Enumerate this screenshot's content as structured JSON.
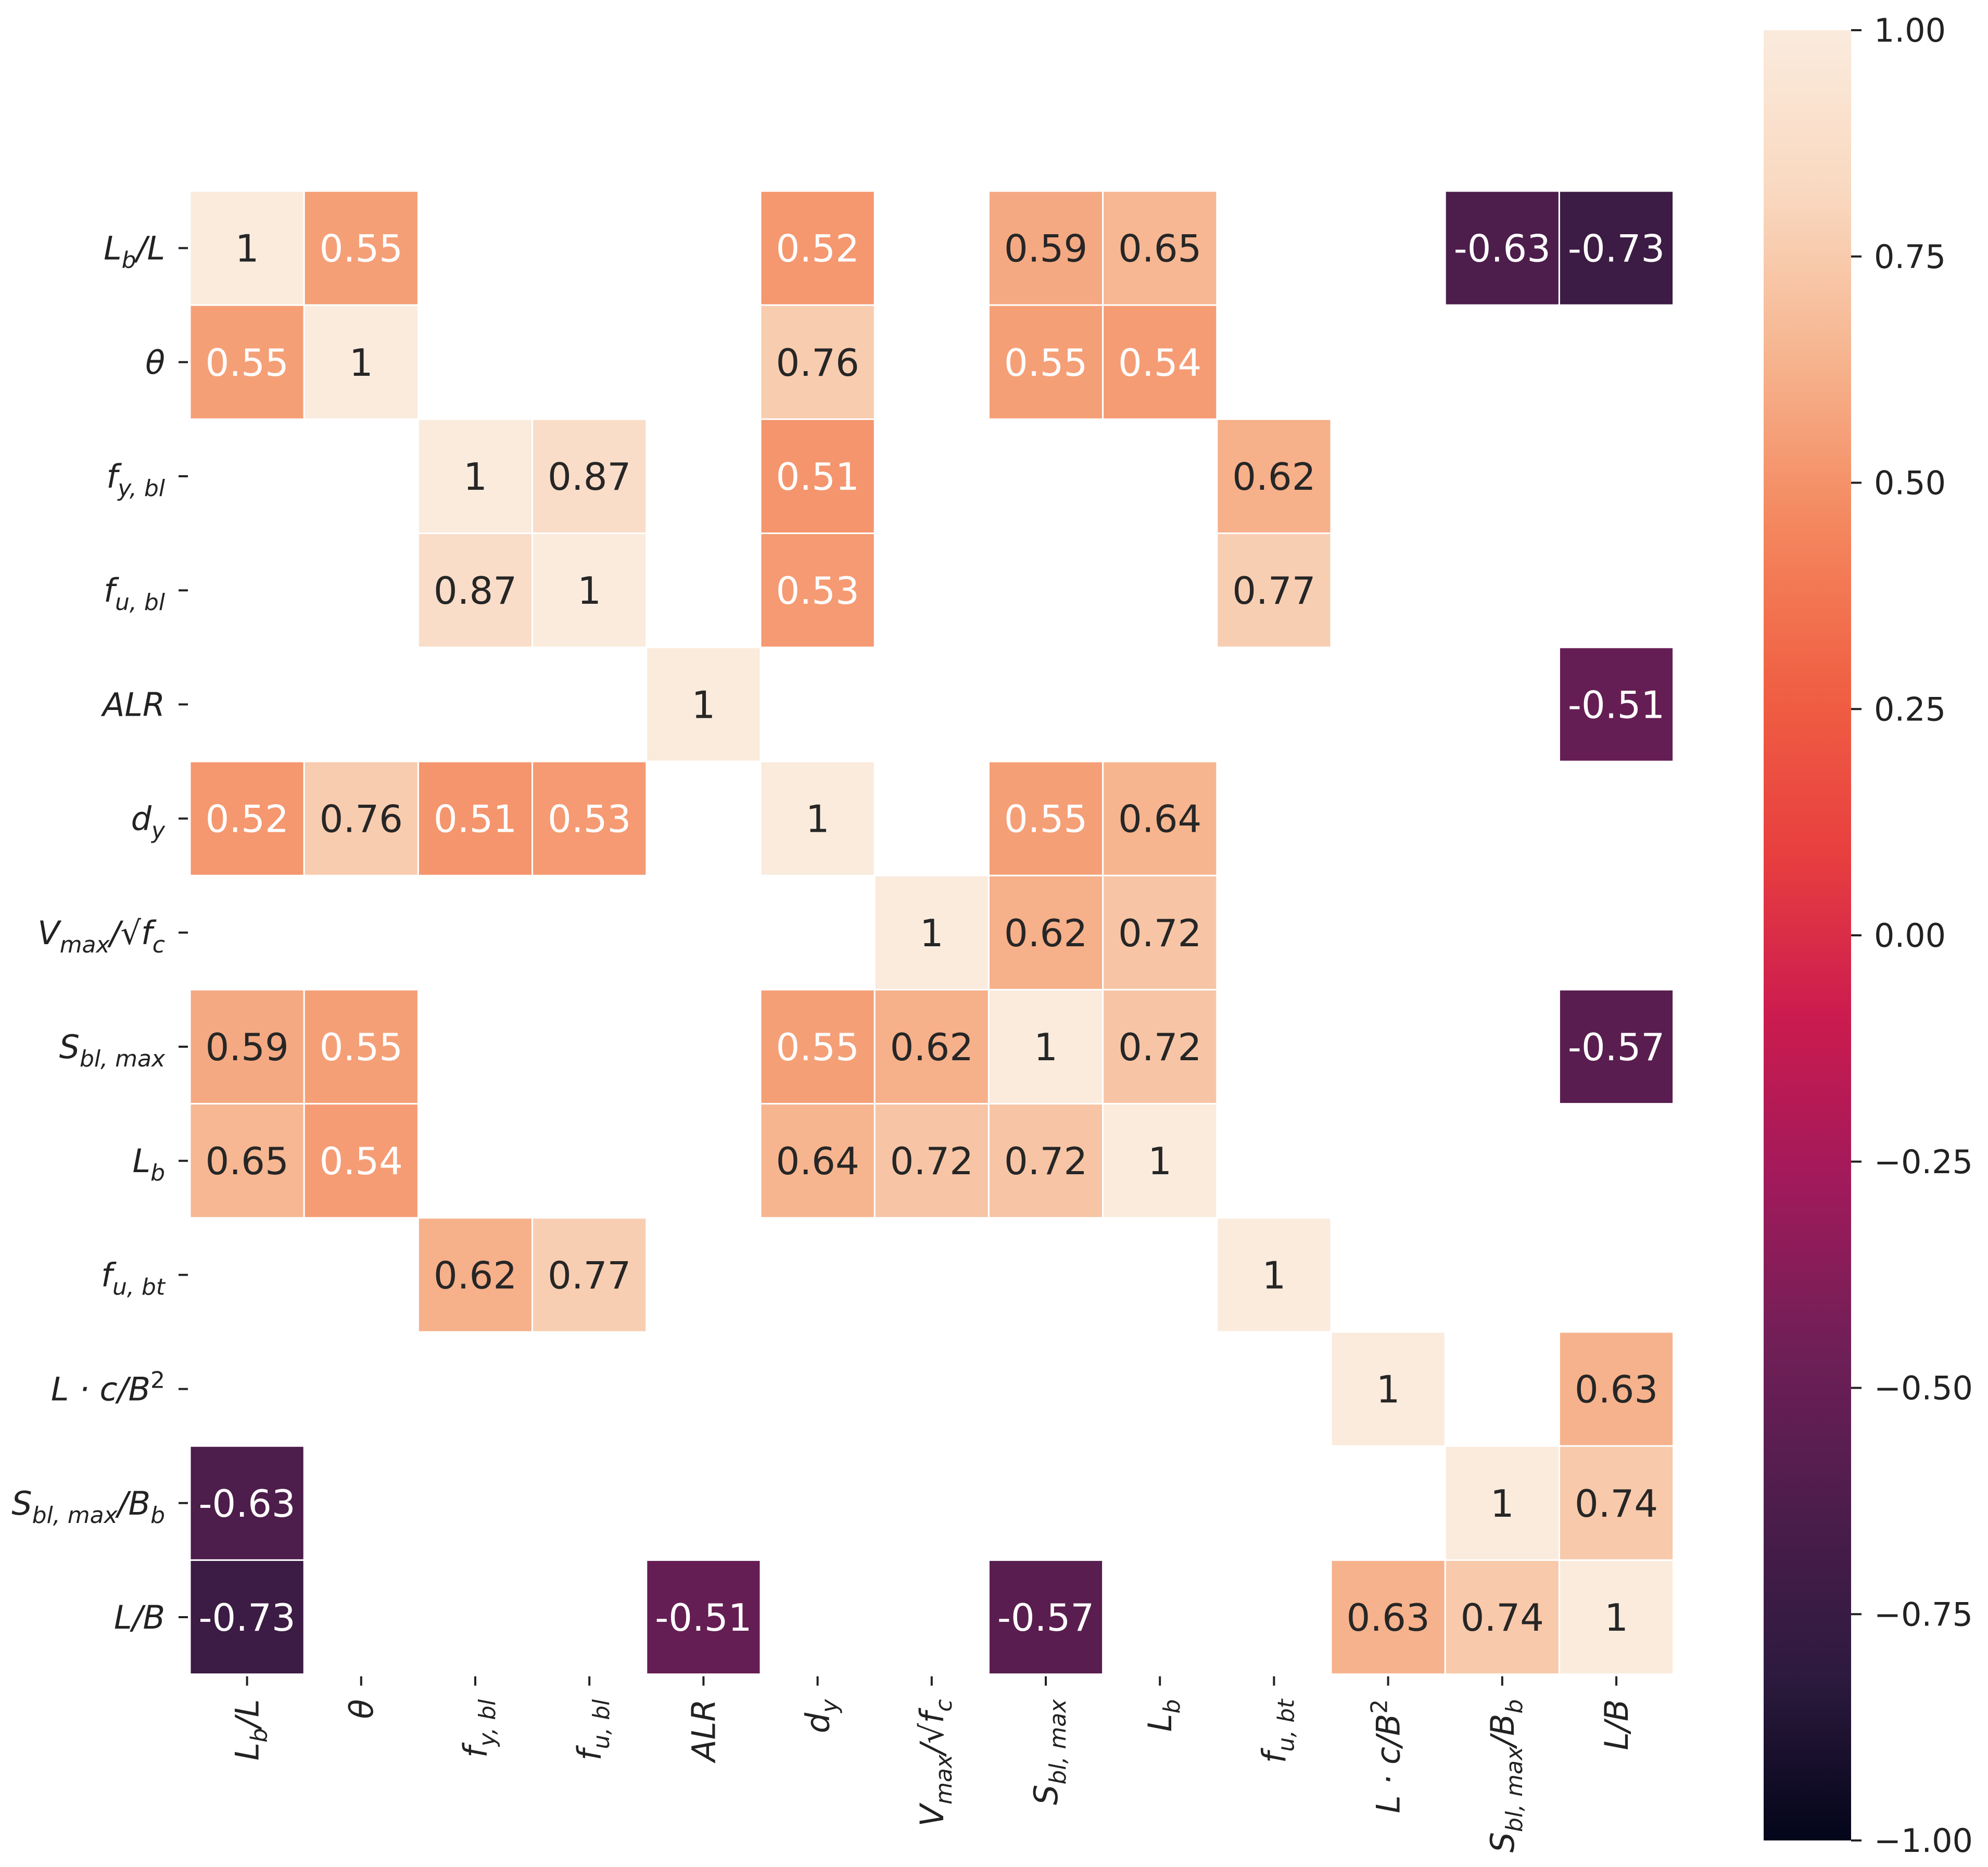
{
  "chart_data": {
    "type": "heatmap",
    "title": "",
    "xlabel": "",
    "ylabel": "",
    "categories": [
      "L_b/L",
      "θ",
      "f_y,bl",
      "f_u,bl",
      "ALR",
      "d_y",
      "V_max/√f_c",
      "S_bl,max",
      "L_b",
      "f_u,bt",
      "L·c/B²",
      "S_bl,max/B_b",
      "L/B"
    ],
    "category_labels": [
      {
        "base": "L",
        "sub": "b",
        "tail": "/L"
      },
      {
        "base": "θ",
        "sub": "",
        "tail": ""
      },
      {
        "base": "f",
        "sub": "y, bl",
        "tail": ""
      },
      {
        "base": "f",
        "sub": "u, bl",
        "tail": ""
      },
      {
        "base": "ALR",
        "sub": "",
        "tail": ""
      },
      {
        "base": "d",
        "sub": "y",
        "tail": ""
      },
      {
        "base": "V",
        "sub": "max",
        "tail": "/√f",
        "sub2": "c"
      },
      {
        "base": "S",
        "sub": "bl, max",
        "tail": ""
      },
      {
        "base": "L",
        "sub": "b",
        "tail": ""
      },
      {
        "base": "f",
        "sub": "u, bt",
        "tail": ""
      },
      {
        "base": "L · c/B",
        "sup": "2",
        "sub": "",
        "tail": ""
      },
      {
        "base": "S",
        "sub": "bl, max",
        "tail": "/B",
        "sub2": "b"
      },
      {
        "base": "L/B",
        "sub": "",
        "tail": ""
      }
    ],
    "values": [
      [
        1,
        0.55,
        null,
        null,
        null,
        0.52,
        null,
        0.59,
        0.65,
        null,
        null,
        -0.63,
        -0.73
      ],
      [
        0.55,
        1,
        null,
        null,
        null,
        0.76,
        null,
        0.55,
        0.54,
        null,
        null,
        null,
        null
      ],
      [
        null,
        null,
        1,
        0.87,
        null,
        0.51,
        null,
        null,
        null,
        0.62,
        null,
        null,
        null
      ],
      [
        null,
        null,
        0.87,
        1,
        null,
        0.53,
        null,
        null,
        null,
        0.77,
        null,
        null,
        null
      ],
      [
        null,
        null,
        null,
        null,
        1,
        null,
        null,
        null,
        null,
        null,
        null,
        null,
        -0.51
      ],
      [
        0.52,
        0.76,
        0.51,
        0.53,
        null,
        1,
        null,
        0.55,
        0.64,
        null,
        null,
        null,
        null
      ],
      [
        null,
        null,
        null,
        null,
        null,
        null,
        1,
        0.62,
        0.72,
        null,
        null,
        null,
        null
      ],
      [
        0.59,
        0.55,
        null,
        null,
        null,
        0.55,
        0.62,
        1,
        0.72,
        null,
        null,
        null,
        -0.57
      ],
      [
        0.65,
        0.54,
        null,
        null,
        null,
        0.64,
        0.72,
        0.72,
        1,
        null,
        null,
        null,
        null
      ],
      [
        null,
        null,
        0.62,
        0.77,
        null,
        null,
        null,
        null,
        null,
        1,
        null,
        null,
        null
      ],
      [
        null,
        null,
        null,
        null,
        null,
        null,
        null,
        null,
        null,
        null,
        1,
        null,
        0.63
      ],
      [
        -0.63,
        null,
        null,
        null,
        null,
        null,
        null,
        null,
        null,
        null,
        null,
        1,
        0.74
      ],
      [
        -0.73,
        null,
        null,
        null,
        -0.51,
        null,
        null,
        -0.57,
        null,
        null,
        0.63,
        0.74,
        1
      ]
    ],
    "colorbar": {
      "range": [
        -1.0,
        1.0
      ],
      "ticks": [
        1.0,
        0.75,
        0.5,
        0.25,
        0.0,
        -0.25,
        -0.5,
        -0.75,
        -1.0
      ],
      "tick_labels": [
        "1.00",
        "0.75",
        "0.50",
        "0.25",
        "0.00",
        "−0.25",
        "−0.50",
        "−0.75",
        "−1.00"
      ],
      "colormap": "rocket",
      "placement": "right"
    },
    "grid": false
  },
  "colors": {
    "colormap_stops": [
      "#03051a",
      "#2d1a3e",
      "#4c1d4b",
      "#701f57",
      "#a11a5b",
      "#cb1b4f",
      "#e83f3f",
      "#f06043",
      "#f4875e",
      "#f6b48e",
      "#f9d8bf",
      "#faebdd"
    ],
    "text_dark": "#262626",
    "text_light": "#ffffff",
    "cell_border": "#ffffff",
    "axis_text": "#222222"
  }
}
